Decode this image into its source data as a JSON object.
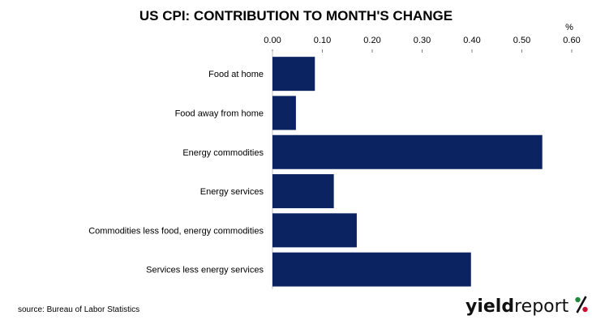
{
  "chart_data": {
    "type": "bar",
    "orientation": "horizontal",
    "title": "US CPI: CONTRIBUTION TO MONTH'S CHANGE",
    "unit": "%",
    "categories": [
      "Food at home",
      "Food away from home",
      "Energy commodities",
      "Energy services",
      "Commodities less food, energy commodities",
      "Services less energy services"
    ],
    "values": [
      0.085,
      0.047,
      0.541,
      0.123,
      0.169,
      0.398
    ],
    "xlim": [
      0,
      0.6
    ],
    "ticks": [
      "0.00",
      "0.10",
      "0.20",
      "0.30",
      "0.40",
      "0.50",
      "0.60"
    ],
    "axis_position": "top",
    "grid": false,
    "legend": "none",
    "bar_color": "#0b2461"
  },
  "source": "source: Bureau of Labor Statistics",
  "logo": {
    "part1": "yield",
    "part2": "report",
    "part3": "%",
    "colors": [
      "#1e8a3c",
      "#c8102e"
    ]
  }
}
